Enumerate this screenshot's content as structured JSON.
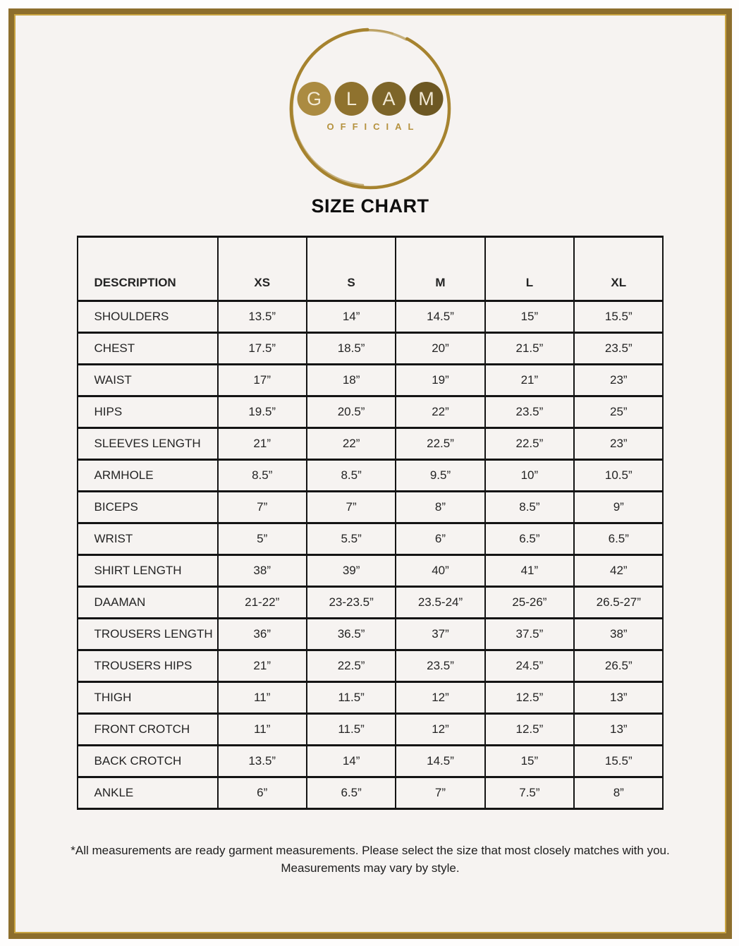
{
  "brand": {
    "letters": [
      "G",
      "L",
      "A",
      "M"
    ],
    "subtitle": "OFFICIAL",
    "circle_colors": [
      "#ab8b41",
      "#8f722e",
      "#7d6529",
      "#6d5823"
    ],
    "ring_color": "#a6832f",
    "letter_color": "#f2e9d4",
    "subtitle_color": "#b5923e"
  },
  "title": "SIZE CHART",
  "table": {
    "columns": [
      "DESCRIPTION",
      "XS",
      "S",
      "M",
      "L",
      "XL"
    ],
    "rows": [
      {
        "label": "SHOULDERS",
        "values": [
          "13.5”",
          "14”",
          "14.5”",
          "15”",
          "15.5”"
        ]
      },
      {
        "label": "CHEST",
        "values": [
          "17.5”",
          "18.5”",
          "20”",
          "21.5”",
          "23.5”"
        ]
      },
      {
        "label": "WAIST",
        "values": [
          "17”",
          "18”",
          "19”",
          "21”",
          "23”"
        ]
      },
      {
        "label": "HIPS",
        "values": [
          "19.5”",
          "20.5”",
          "22”",
          "23.5”",
          "25”"
        ]
      },
      {
        "label": "SLEEVES LENGTH",
        "values": [
          "21”",
          "22”",
          "22.5”",
          "22.5”",
          "23”"
        ]
      },
      {
        "label": "ARMHOLE",
        "values": [
          "8.5”",
          "8.5”",
          "9.5”",
          "10”",
          "10.5”"
        ]
      },
      {
        "label": "BICEPS",
        "values": [
          "7”",
          "7”",
          "8”",
          "8.5”",
          "9”"
        ]
      },
      {
        "label": "WRIST",
        "values": [
          "5”",
          "5.5”",
          "6”",
          "6.5”",
          "6.5”"
        ]
      },
      {
        "label": "SHIRT LENGTH",
        "values": [
          "38”",
          "39”",
          "40”",
          "41”",
          "42”"
        ]
      },
      {
        "label": "DAAMAN",
        "values": [
          "21-22”",
          "23-23.5”",
          "23.5-24”",
          "25-26”",
          "26.5-27”"
        ]
      },
      {
        "label": "TROUSERS LENGTH",
        "values": [
          "36”",
          "36.5”",
          "37”",
          "37.5”",
          "38”"
        ]
      },
      {
        "label": "TROUSERS HIPS",
        "values": [
          "21”",
          "22.5”",
          "23.5”",
          "24.5”",
          "26.5”"
        ]
      },
      {
        "label": "THIGH",
        "values": [
          "11”",
          "11.5”",
          "12”",
          "12.5”",
          "13”"
        ]
      },
      {
        "label": "FRONT CROTCH",
        "values": [
          "11”",
          "11.5”",
          "12”",
          "12.5”",
          "13”"
        ]
      },
      {
        "label": "BACK CROTCH",
        "values": [
          "13.5”",
          "14”",
          "14.5”",
          "15”",
          "15.5”"
        ]
      },
      {
        "label": "ANKLE",
        "values": [
          "6”",
          "6.5”",
          "7”",
          "7.5”",
          "8”"
        ]
      }
    ]
  },
  "footnote": {
    "line1": "*All measurements are ready garment measurements. Please select the size that most closely matches with you.",
    "line2": "Measurements may vary by style."
  },
  "colors": {
    "frame_border": "#8d6e2c",
    "frame_inner_line": "#c9a442",
    "page_background": "#f6f3f1",
    "table_line": "#141414"
  }
}
